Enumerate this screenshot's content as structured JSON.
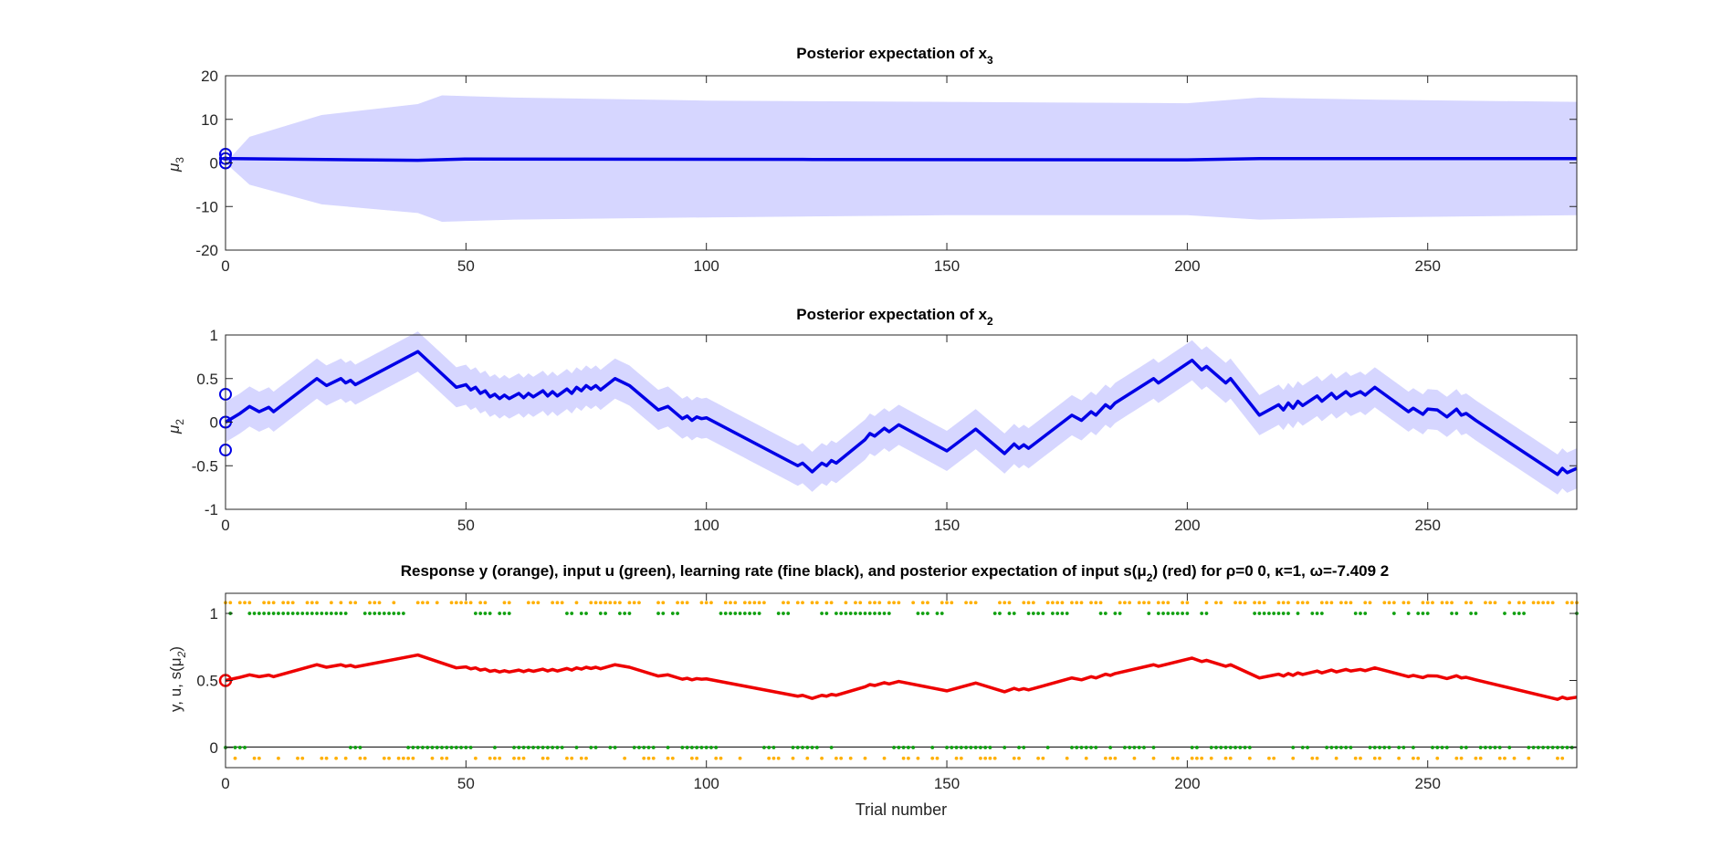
{
  "chart_data": [
    {
      "type": "line",
      "title": "Posterior expectation of x",
      "title_sub": "3",
      "ylabel": "μ",
      "ylabel_sub": "3",
      "xlim": [
        0,
        281
      ],
      "ylim": [
        -20,
        20
      ],
      "xticks": [
        "0",
        "50",
        "100",
        "150",
        "200",
        "250"
      ],
      "yticks": [
        "20",
        "10",
        "0",
        "-10",
        "-20"
      ],
      "band": {
        "color": "#d6d6ff",
        "upper": [
          [
            0,
            0
          ],
          [
            5,
            6
          ],
          [
            20,
            11
          ],
          [
            40,
            13.5
          ],
          [
            45,
            15.5
          ],
          [
            60,
            15
          ],
          [
            100,
            14.3
          ],
          [
            150,
            14
          ],
          [
            200,
            13.7
          ],
          [
            215,
            15
          ],
          [
            240,
            14.5
          ],
          [
            281,
            14
          ]
        ],
        "lower": [
          [
            0,
            0
          ],
          [
            5,
            -5
          ],
          [
            20,
            -9.5
          ],
          [
            40,
            -11.5
          ],
          [
            45,
            -13.5
          ],
          [
            60,
            -13
          ],
          [
            100,
            -12.5
          ],
          [
            150,
            -12
          ],
          [
            200,
            -12
          ],
          [
            215,
            -13
          ],
          [
            240,
            -12.5
          ],
          [
            281,
            -12
          ]
        ]
      },
      "series": [
        {
          "color": "#0000e6",
          "points": [
            [
              0,
              1
            ],
            [
              40,
              0.6
            ],
            [
              50,
              0.9
            ],
            [
              120,
              0.8
            ],
            [
              200,
              0.7
            ],
            [
              215,
              1
            ],
            [
              281,
              1
            ]
          ]
        }
      ],
      "markers": {
        "color": "#0000e6",
        "points": [
          [
            0,
            2
          ],
          [
            0,
            1
          ],
          [
            0,
            0
          ]
        ]
      }
    },
    {
      "type": "line",
      "title": "Posterior expectation of x",
      "title_sub": "2",
      "ylabel": "μ",
      "ylabel_sub": "2",
      "xlim": [
        0,
        281
      ],
      "ylim": [
        -1,
        1
      ],
      "xticks": [
        "0",
        "50",
        "100",
        "150",
        "200",
        "250"
      ],
      "yticks": [
        "1",
        "0.5",
        "0",
        "-0.5",
        "-1"
      ],
      "band": {
        "color": "#d6d6ff",
        "halfwidth": 0.23
      },
      "series": [
        {
          "color": "#0000e6",
          "points": [
            [
              0,
              0
            ],
            [
              3,
              0.1
            ],
            [
              5,
              0.18
            ],
            [
              7,
              0.12
            ],
            [
              9,
              0.17
            ],
            [
              10,
              0.12
            ],
            [
              19,
              0.5
            ],
            [
              21,
              0.42
            ],
            [
              24,
              0.5
            ],
            [
              25,
              0.45
            ],
            [
              26,
              0.48
            ],
            [
              27,
              0.43
            ],
            [
              40,
              0.81
            ],
            [
              48,
              0.4
            ],
            [
              50,
              0.43
            ],
            [
              51,
              0.37
            ],
            [
              52,
              0.4
            ],
            [
              53,
              0.33
            ],
            [
              54,
              0.36
            ],
            [
              55,
              0.29
            ],
            [
              56,
              0.32
            ],
            [
              57,
              0.27
            ],
            [
              58,
              0.31
            ],
            [
              59,
              0.27
            ],
            [
              61,
              0.33
            ],
            [
              62,
              0.28
            ],
            [
              63,
              0.33
            ],
            [
              64,
              0.29
            ],
            [
              66,
              0.36
            ],
            [
              67,
              0.3
            ],
            [
              68,
              0.35
            ],
            [
              69,
              0.3
            ],
            [
              71,
              0.38
            ],
            [
              72,
              0.33
            ],
            [
              73,
              0.4
            ],
            [
              74,
              0.36
            ],
            [
              75,
              0.42
            ],
            [
              76,
              0.38
            ],
            [
              77,
              0.42
            ],
            [
              78,
              0.37
            ],
            [
              81,
              0.5
            ],
            [
              84,
              0.42
            ],
            [
              90,
              0.14
            ],
            [
              92,
              0.18
            ],
            [
              95,
              0.04
            ],
            [
              96,
              0.07
            ],
            [
              97,
              0.02
            ],
            [
              98,
              0.06
            ],
            [
              99,
              0.04
            ],
            [
              100,
              0.05
            ],
            [
              119,
              -0.5
            ],
            [
              120,
              -0.47
            ],
            [
              122,
              -0.57
            ],
            [
              124,
              -0.47
            ],
            [
              125,
              -0.5
            ],
            [
              126,
              -0.44
            ],
            [
              127,
              -0.47
            ],
            [
              133,
              -0.2
            ],
            [
              134,
              -0.13
            ],
            [
              135,
              -0.16
            ],
            [
              137,
              -0.07
            ],
            [
              138,
              -0.11
            ],
            [
              140,
              -0.03
            ],
            [
              150,
              -0.33
            ],
            [
              156,
              -0.08
            ],
            [
              162,
              -0.36
            ],
            [
              164,
              -0.25
            ],
            [
              165,
              -0.3
            ],
            [
              166,
              -0.26
            ],
            [
              167,
              -0.3
            ],
            [
              176,
              0.08
            ],
            [
              178,
              0.02
            ],
            [
              180,
              0.12
            ],
            [
              181,
              0.08
            ],
            [
              183,
              0.2
            ],
            [
              184,
              0.16
            ],
            [
              185,
              0.22
            ],
            [
              193,
              0.5
            ],
            [
              194,
              0.45
            ],
            [
              201,
              0.71
            ],
            [
              203,
              0.6
            ],
            [
              204,
              0.64
            ],
            [
              208,
              0.45
            ],
            [
              209,
              0.5
            ],
            [
              215,
              0.08
            ],
            [
              219,
              0.2
            ],
            [
              220,
              0.14
            ],
            [
              221,
              0.22
            ],
            [
              222,
              0.16
            ],
            [
              223,
              0.24
            ],
            [
              224,
              0.19
            ],
            [
              227,
              0.3
            ],
            [
              228,
              0.24
            ],
            [
              230,
              0.33
            ],
            [
              231,
              0.27
            ],
            [
              233,
              0.35
            ],
            [
              234,
              0.3
            ],
            [
              236,
              0.35
            ],
            [
              237,
              0.31
            ],
            [
              239,
              0.4
            ],
            [
              246,
              0.12
            ],
            [
              247,
              0.16
            ],
            [
              249,
              0.09
            ],
            [
              250,
              0.15
            ],
            [
              252,
              0.14
            ],
            [
              254,
              0.06
            ],
            [
              256,
              0.15
            ],
            [
              257,
              0.08
            ],
            [
              258,
              0.1
            ],
            [
              260,
              0.02
            ],
            [
              277,
              -0.6
            ],
            [
              278,
              -0.53
            ],
            [
              279,
              -0.58
            ],
            [
              281,
              -0.53
            ]
          ]
        }
      ],
      "markers": {
        "color": "#0000e6",
        "points": [
          [
            0,
            0.32
          ],
          [
            0,
            0
          ],
          [
            0,
            -0.32
          ]
        ]
      }
    },
    {
      "type": "scatter",
      "title": "Response y (orange), input u (green), learning rate (fine black), and posterior expectation of input s(μ",
      "title_sub": "2",
      "title_rest": ") (red) for ρ=0  0, κ=1, ω=-7.409          2",
      "ylabel": "y, u, s(μ",
      "ylabel_sub": "2",
      "ylabel_rest": ")",
      "xlabel": "Trial number",
      "xlim": [
        0,
        281
      ],
      "ylim": [
        -0.15,
        1.15
      ],
      "xticks": [
        "0",
        "50",
        "100",
        "150",
        "200",
        "250"
      ],
      "yticks": [
        "1",
        "0.5",
        "0"
      ],
      "colors": {
        "response": "#ffb000",
        "input": "#10a010",
        "belief": "#ee0000",
        "rate": "#000000"
      },
      "belief_offset": 0.5,
      "belief_scale": 0.235,
      "input_ones": [
        [
          1,
          1
        ],
        [
          5,
          10
        ],
        [
          11,
          25
        ],
        [
          29,
          37
        ],
        [
          52,
          55
        ],
        [
          57,
          59
        ],
        [
          71,
          72
        ],
        [
          74,
          75
        ],
        [
          78,
          79
        ],
        [
          82,
          84
        ],
        [
          90,
          91
        ],
        [
          93,
          94
        ],
        [
          103,
          111
        ],
        [
          115,
          117
        ],
        [
          124,
          125
        ],
        [
          127,
          138
        ],
        [
          144,
          146
        ],
        [
          148,
          149
        ],
        [
          160,
          161
        ],
        [
          163,
          164
        ],
        [
          167,
          170
        ],
        [
          172,
          175
        ],
        [
          182,
          183
        ],
        [
          185,
          186
        ],
        [
          192,
          192
        ],
        [
          194,
          200
        ],
        [
          203,
          204
        ],
        [
          214,
          221
        ],
        [
          223,
          223
        ],
        [
          226,
          228
        ],
        [
          235,
          237
        ],
        [
          243,
          243
        ],
        [
          246,
          246
        ],
        [
          248,
          250
        ],
        [
          255,
          256
        ],
        [
          259,
          260
        ],
        [
          266,
          266
        ],
        [
          268,
          270
        ],
        [
          281,
          281
        ]
      ],
      "response_ones": [
        [
          0,
          1
        ],
        [
          3,
          5
        ],
        [
          8,
          10
        ],
        [
          12,
          14
        ],
        [
          17,
          19
        ],
        [
          22,
          22
        ],
        [
          24,
          24
        ],
        [
          26,
          27
        ],
        [
          30,
          32
        ],
        [
          35,
          35
        ],
        [
          40,
          42
        ],
        [
          44,
          44
        ],
        [
          47,
          51
        ],
        [
          53,
          54
        ],
        [
          58,
          59
        ],
        [
          63,
          65
        ],
        [
          68,
          70
        ],
        [
          73,
          73
        ],
        [
          76,
          82
        ],
        [
          84,
          86
        ],
        [
          90,
          91
        ],
        [
          94,
          96
        ],
        [
          99,
          101
        ],
        [
          104,
          106
        ],
        [
          108,
          112
        ],
        [
          116,
          117
        ],
        [
          119,
          120
        ],
        [
          122,
          123
        ],
        [
          125,
          126
        ],
        [
          129,
          129
        ],
        [
          131,
          132
        ],
        [
          134,
          136
        ],
        [
          138,
          140
        ],
        [
          143,
          143
        ],
        [
          145,
          146
        ],
        [
          149,
          151
        ],
        [
          154,
          156
        ],
        [
          161,
          163
        ],
        [
          166,
          168
        ],
        [
          171,
          174
        ],
        [
          176,
          178
        ],
        [
          180,
          182
        ],
        [
          186,
          188
        ],
        [
          190,
          192
        ],
        [
          194,
          196
        ],
        [
          199,
          200
        ],
        [
          204,
          204
        ],
        [
          206,
          207
        ],
        [
          210,
          212
        ],
        [
          214,
          216
        ],
        [
          219,
          221
        ],
        [
          223,
          225
        ],
        [
          228,
          230
        ],
        [
          232,
          234
        ],
        [
          237,
          238
        ],
        [
          241,
          243
        ],
        [
          245,
          246
        ],
        [
          249,
          251
        ],
        [
          253,
          255
        ],
        [
          258,
          259
        ],
        [
          262,
          264
        ],
        [
          267,
          267
        ],
        [
          269,
          270
        ],
        [
          272,
          276
        ],
        [
          279,
          281
        ]
      ],
      "belief_marker": {
        "x": 0,
        "y": 0.5
      }
    }
  ]
}
